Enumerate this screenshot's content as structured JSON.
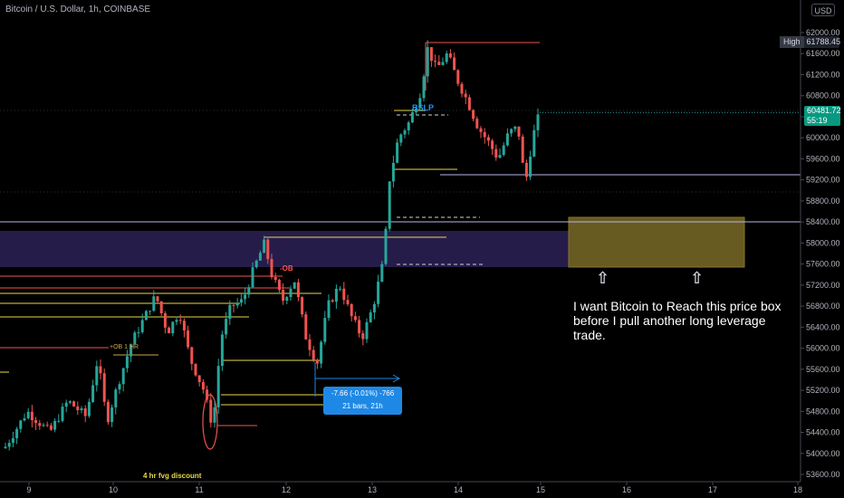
{
  "header": {
    "symbol_title": "Bitcoin / U.S. Dollar, 1h, COINBASE",
    "currency_button": "USD"
  },
  "price_axis": {
    "labels": [
      "62000.00",
      "61600.00",
      "61200.00",
      "60800.00",
      "60400.00",
      "60000.00",
      "59600.00",
      "59200.00",
      "58800.00",
      "58400.00",
      "58000.00",
      "57600.00",
      "57200.00",
      "56800.00",
      "56400.00",
      "56000.00",
      "55600.00",
      "55200.00",
      "54800.00",
      "54400.00",
      "54000.00",
      "53600.00"
    ],
    "high_label": "High",
    "high_value": "61788.45",
    "last_price": "60481.72",
    "countdown": "55:19"
  },
  "time_axis": {
    "labels": [
      "9",
      "10",
      "11",
      "12",
      "13",
      "14",
      "15",
      "16",
      "17",
      "18"
    ]
  },
  "annotations": {
    "bslp": "BSLP",
    "ob": "-OB",
    "ob_1hr": "+OB 1 HR",
    "fvg": "4 hr fvg discount",
    "target_text": "I want Bitcoin to Reach this price box before I pull another long leverage trade.",
    "arrow_glyph": "⇧"
  },
  "measure_tool": {
    "line1": "-7.66 (-0.01%) -766",
    "line2": "21 bars, 21h"
  },
  "colors": {
    "up": "#26a69a",
    "down": "#ef5350",
    "price_box": "#8a7a2e",
    "purple_zone": "#2a1f52",
    "last_price_bg": "#089981",
    "measure_bg": "#1e88e5"
  }
}
